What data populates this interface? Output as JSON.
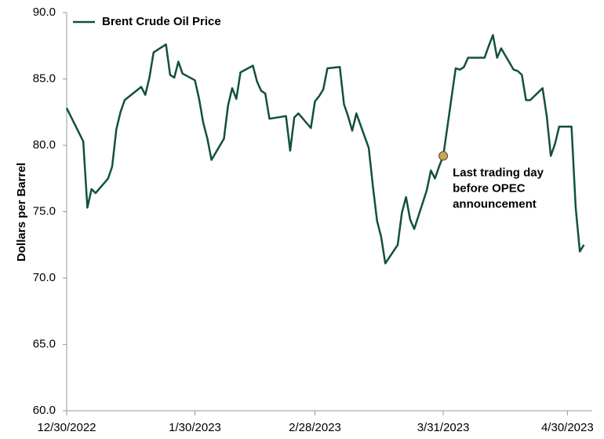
{
  "chart_data": {
    "type": "line",
    "y_label": "Dollars per Barrel",
    "x": [
      "2022-12-30",
      "2023-01-03",
      "2023-01-04",
      "2023-01-05",
      "2023-01-06",
      "2023-01-09",
      "2023-01-10",
      "2023-01-11",
      "2023-01-12",
      "2023-01-13",
      "2023-01-17",
      "2023-01-18",
      "2023-01-19",
      "2023-01-20",
      "2023-01-23",
      "2023-01-24",
      "2023-01-25",
      "2023-01-26",
      "2023-01-27",
      "2023-01-30",
      "2023-01-31",
      "2023-02-01",
      "2023-02-02",
      "2023-02-03",
      "2023-02-06",
      "2023-02-07",
      "2023-02-08",
      "2023-02-09",
      "2023-02-10",
      "2023-02-13",
      "2023-02-14",
      "2023-02-15",
      "2023-02-16",
      "2023-02-17",
      "2023-02-21",
      "2023-02-22",
      "2023-02-23",
      "2023-02-24",
      "2023-02-27",
      "2023-02-28",
      "2023-03-01",
      "2023-03-02",
      "2023-03-03",
      "2023-03-06",
      "2023-03-07",
      "2023-03-08",
      "2023-03-09",
      "2023-03-10",
      "2023-03-13",
      "2023-03-14",
      "2023-03-15",
      "2023-03-16",
      "2023-03-17",
      "2023-03-20",
      "2023-03-21",
      "2023-03-22",
      "2023-03-23",
      "2023-03-24",
      "2023-03-27",
      "2023-03-28",
      "2023-03-29",
      "2023-03-30",
      "2023-03-31",
      "2023-04-03",
      "2023-04-04",
      "2023-04-05",
      "2023-04-06",
      "2023-04-10",
      "2023-04-11",
      "2023-04-12",
      "2023-04-13",
      "2023-04-14",
      "2023-04-17",
      "2023-04-18",
      "2023-04-19",
      "2023-04-20",
      "2023-04-21",
      "2023-04-24",
      "2023-04-25",
      "2023-04-26",
      "2023-04-27",
      "2023-04-28",
      "2023-05-01",
      "2023-05-02",
      "2023-05-03",
      "2023-05-04"
    ],
    "series": [
      {
        "name": "Brent Crude Oil Price",
        "color": "#12503f",
        "values": [
          82.8,
          80.3,
          75.3,
          76.7,
          76.4,
          77.5,
          78.4,
          81.2,
          82.5,
          83.4,
          84.4,
          83.8,
          85.1,
          87.0,
          87.6,
          85.3,
          85.1,
          86.3,
          85.4,
          84.9,
          83.5,
          81.7,
          80.5,
          78.9,
          80.5,
          83.0,
          84.3,
          83.5,
          85.5,
          86.0,
          84.8,
          84.1,
          83.9,
          82.0,
          82.2,
          79.6,
          82.1,
          82.4,
          81.3,
          83.3,
          83.7,
          84.2,
          85.8,
          85.9,
          83.1,
          82.2,
          81.1,
          82.4,
          79.8,
          76.9,
          74.3,
          73.1,
          71.1,
          72.5,
          74.9,
          76.1,
          74.4,
          73.7,
          76.6,
          78.1,
          77.5,
          78.4,
          79.2,
          85.8,
          85.7,
          85.9,
          86.6,
          86.6,
          87.5,
          88.3,
          86.6,
          87.3,
          85.7,
          85.6,
          85.3,
          83.4,
          83.4,
          84.3,
          82.2,
          79.2,
          80.1,
          81.4,
          81.4,
          75.3,
          72.0,
          72.5
        ]
      }
    ],
    "xlim": [
      "2022-12-30",
      "2023-05-06"
    ],
    "xticks": [
      {
        "value": "2022-12-30",
        "label": "12/30/2022"
      },
      {
        "value": "2023-01-30",
        "label": "1/30/2023"
      },
      {
        "value": "2023-02-28",
        "label": "2/28/2023"
      },
      {
        "value": "2023-03-31",
        "label": "3/31/2023"
      },
      {
        "value": "2023-04-30",
        "label": "4/30/2023"
      }
    ],
    "ylim": [
      60,
      90
    ],
    "yticks": [
      {
        "value": 60,
        "label": "60.0"
      },
      {
        "value": 65,
        "label": "65.0"
      },
      {
        "value": 70,
        "label": "70.0"
      },
      {
        "value": 75,
        "label": "75.0"
      },
      {
        "value": 80,
        "label": "80.0"
      },
      {
        "value": 85,
        "label": "85.0"
      },
      {
        "value": 90,
        "label": "90.0"
      }
    ],
    "legend": "upper left",
    "annotation": {
      "x": "2023-03-31",
      "color": "#c9a55a",
      "lines": [
        "Last trading day",
        "before OPEC",
        "announcement"
      ]
    }
  }
}
